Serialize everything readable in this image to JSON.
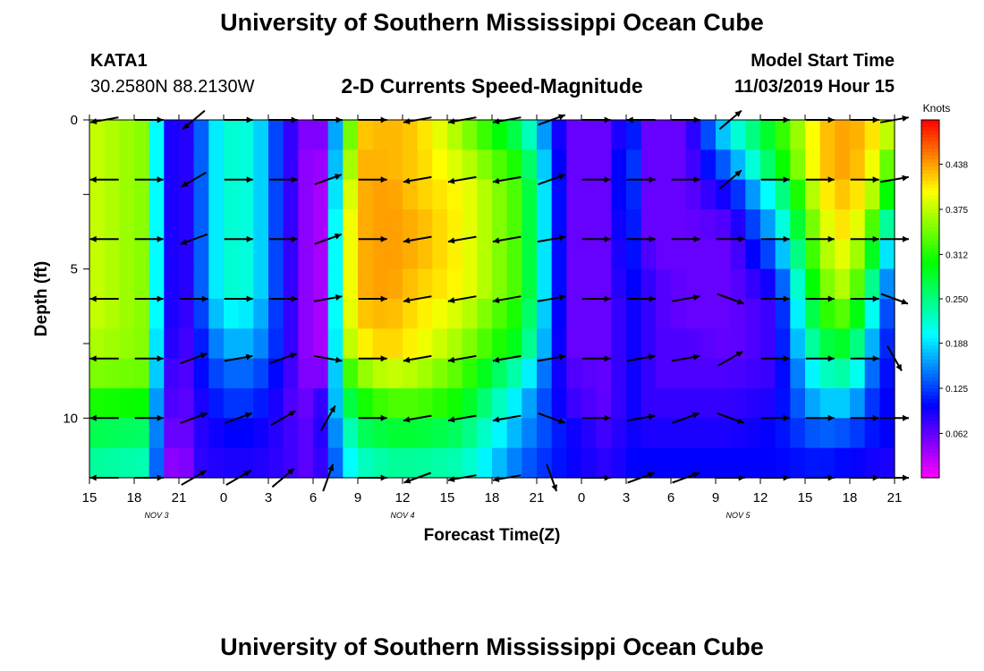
{
  "header": {
    "title": "University of Southern Mississippi Ocean Cube",
    "station_id": "KATA1",
    "coords": "30.2580N 88.2130W",
    "chart_title": "2-D Currents Speed-Magnitude",
    "model_label": "Model Start Time",
    "model_time": "11/03/2019 Hour 15"
  },
  "footer": {
    "title": "University of Southern Mississippi Ocean Cube"
  },
  "chart_data": {
    "type": "heatmap",
    "title": "2-D Currents Speed-Magnitude",
    "xlabel": "Forecast Time(Z)",
    "ylabel": "Depth (ft)",
    "colorbar_label": "Knots",
    "xlim": [
      15,
      69
    ],
    "ylim": [
      0,
      12
    ],
    "x_tick_labels": [
      "15",
      "18",
      "21",
      "0",
      "3",
      "6",
      "9",
      "12",
      "15",
      "18",
      "21",
      "0",
      "3",
      "6",
      "9",
      "12",
      "15",
      "18",
      "21"
    ],
    "date_labels": [
      {
        "text": "NOV 3",
        "hour": 19.5
      },
      {
        "text": "NOV 4",
        "hour": 36
      },
      {
        "text": "NOV 5",
        "hour": 58.5
      }
    ],
    "y_ticks": [
      0,
      5,
      10
    ],
    "colorbar_ticks": [
      "0.438",
      "0.375",
      "0.312",
      "0.250",
      "0.188",
      "0.125",
      "0.062"
    ],
    "colorbar_range": [
      0,
      0.5
    ],
    "depth_rows": [
      0,
      1,
      2,
      3,
      4,
      5,
      6,
      7,
      8,
      9,
      10,
      11
    ],
    "speed_key_hours": [
      15,
      19,
      19.5,
      20,
      21,
      22,
      24,
      26,
      28,
      29,
      30,
      31,
      32,
      33,
      35,
      37,
      40,
      44,
      47,
      50,
      51,
      52,
      52.5,
      53,
      55,
      58,
      61,
      64,
      66,
      68,
      69
    ],
    "speed_profiles": [
      [
        0.38,
        0.38,
        0.38,
        0.38,
        0.38,
        0.38,
        0.38,
        0.37,
        0.35,
        0.31,
        0.27,
        0.24
      ],
      [
        0.35,
        0.35,
        0.35,
        0.35,
        0.35,
        0.35,
        0.35,
        0.35,
        0.34,
        0.3,
        0.26,
        0.23
      ],
      [
        0.2,
        0.2,
        0.2,
        0.2,
        0.2,
        0.2,
        0.2,
        0.19,
        0.18,
        0.16,
        0.15,
        0.14
      ],
      [
        0.12,
        0.12,
        0.12,
        0.12,
        0.12,
        0.12,
        0.12,
        0.11,
        0.1,
        0.09,
        0.08,
        0.07
      ],
      [
        0.06,
        0.06,
        0.06,
        0.06,
        0.06,
        0.06,
        0.06,
        0.06,
        0.05,
        0.05,
        0.04,
        0.02
      ],
      [
        0.11,
        0.11,
        0.11,
        0.11,
        0.11,
        0.11,
        0.1,
        0.09,
        0.09,
        0.08,
        0.08,
        0.08
      ],
      [
        0.22,
        0.22,
        0.22,
        0.22,
        0.22,
        0.22,
        0.2,
        0.17,
        0.14,
        0.12,
        0.1,
        0.09
      ],
      [
        0.21,
        0.21,
        0.21,
        0.21,
        0.21,
        0.21,
        0.19,
        0.17,
        0.14,
        0.12,
        0.1,
        0.09
      ],
      [
        0.1,
        0.1,
        0.1,
        0.1,
        0.1,
        0.1,
        0.1,
        0.1,
        0.09,
        0.08,
        0.08,
        0.08
      ],
      [
        0.06,
        0.06,
        0.06,
        0.06,
        0.06,
        0.06,
        0.06,
        0.06,
        0.06,
        0.06,
        0.07,
        0.07
      ],
      [
        0.04,
        0.03,
        0.03,
        0.03,
        0.03,
        0.03,
        0.03,
        0.03,
        0.04,
        0.06,
        0.06,
        0.06
      ],
      [
        0.06,
        0.05,
        0.04,
        0.04,
        0.04,
        0.04,
        0.04,
        0.04,
        0.06,
        0.1,
        0.11,
        0.1
      ],
      [
        0.27,
        0.3,
        0.34,
        0.36,
        0.36,
        0.36,
        0.36,
        0.35,
        0.3,
        0.25,
        0.2,
        0.18
      ],
      [
        0.42,
        0.43,
        0.43,
        0.43,
        0.43,
        0.43,
        0.42,
        0.4,
        0.35,
        0.3,
        0.26,
        0.22
      ],
      [
        0.43,
        0.43,
        0.44,
        0.44,
        0.44,
        0.44,
        0.43,
        0.42,
        0.38,
        0.33,
        0.28,
        0.24
      ],
      [
        0.42,
        0.42,
        0.42,
        0.43,
        0.43,
        0.42,
        0.41,
        0.4,
        0.37,
        0.33,
        0.28,
        0.24
      ],
      [
        0.36,
        0.38,
        0.4,
        0.4,
        0.4,
        0.4,
        0.38,
        0.36,
        0.33,
        0.3,
        0.26,
        0.23
      ],
      [
        0.26,
        0.3,
        0.32,
        0.32,
        0.32,
        0.32,
        0.3,
        0.28,
        0.22,
        0.18,
        0.16,
        0.14
      ],
      [
        0.06,
        0.06,
        0.06,
        0.06,
        0.06,
        0.06,
        0.06,
        0.06,
        0.07,
        0.08,
        0.1,
        0.1
      ],
      [
        0.06,
        0.06,
        0.06,
        0.06,
        0.06,
        0.06,
        0.06,
        0.06,
        0.06,
        0.06,
        0.07,
        0.08
      ],
      [
        0.12,
        0.14,
        0.14,
        0.13,
        0.12,
        0.11,
        0.1,
        0.1,
        0.1,
        0.1,
        0.1,
        0.1
      ],
      [
        0.1,
        0.1,
        0.09,
        0.09,
        0.09,
        0.09,
        0.09,
        0.09,
        0.09,
        0.09,
        0.09,
        0.1
      ],
      [
        0.06,
        0.06,
        0.06,
        0.06,
        0.07,
        0.08,
        0.08,
        0.08,
        0.08,
        0.08,
        0.09,
        0.1
      ],
      [
        0.06,
        0.06,
        0.06,
        0.06,
        0.06,
        0.07,
        0.07,
        0.07,
        0.07,
        0.08,
        0.09,
        0.1
      ],
      [
        0.06,
        0.06,
        0.06,
        0.06,
        0.06,
        0.06,
        0.06,
        0.07,
        0.07,
        0.08,
        0.09,
        0.1
      ],
      [
        0.2,
        0.15,
        0.1,
        0.07,
        0.06,
        0.06,
        0.06,
        0.06,
        0.07,
        0.08,
        0.09,
        0.1
      ],
      [
        0.3,
        0.28,
        0.22,
        0.18,
        0.14,
        0.1,
        0.08,
        0.08,
        0.08,
        0.09,
        0.1,
        0.1
      ],
      [
        0.42,
        0.42,
        0.4,
        0.38,
        0.36,
        0.34,
        0.31,
        0.27,
        0.22,
        0.18,
        0.14,
        0.11
      ],
      [
        0.44,
        0.44,
        0.43,
        0.42,
        0.4,
        0.38,
        0.34,
        0.29,
        0.24,
        0.18,
        0.13,
        0.1
      ],
      [
        0.4,
        0.38,
        0.35,
        0.3,
        0.25,
        0.2,
        0.16,
        0.13,
        0.11,
        0.1,
        0.1,
        0.09
      ],
      [
        0.35,
        0.3,
        0.25,
        0.18,
        0.13,
        0.11,
        0.1,
        0.1,
        0.1,
        0.1,
        0.1,
        0.09
      ]
    ],
    "vector_hours": [
      16,
      19,
      22,
      25,
      28,
      31,
      34,
      37,
      40,
      43,
      46,
      49,
      52,
      55,
      58,
      61,
      64,
      67,
      69
    ],
    "vector_depths": [
      0,
      2,
      4,
      6,
      8,
      10,
      12
    ],
    "vector_directions_deg": [
      [
        190,
        180,
        180,
        180,
        180,
        180,
        180
      ],
      [
        0,
        0,
        0,
        0,
        0,
        0,
        0
      ],
      [
        220,
        210,
        200,
        0,
        20,
        20,
        30
      ],
      [
        0,
        0,
        0,
        0,
        10,
        20,
        30
      ],
      [
        0,
        0,
        0,
        0,
        20,
        30,
        40
      ],
      [
        0,
        20,
        20,
        10,
        -10,
        60,
        70
      ],
      [
        0,
        0,
        0,
        0,
        0,
        0,
        0
      ],
      [
        190,
        190,
        190,
        190,
        190,
        190,
        200
      ],
      [
        190,
        190,
        190,
        190,
        190,
        190,
        190
      ],
      [
        190,
        190,
        190,
        190,
        190,
        190,
        190
      ],
      [
        20,
        20,
        10,
        10,
        10,
        -20,
        -70
      ],
      [
        0,
        0,
        0,
        0,
        0,
        0,
        0
      ],
      [
        -180,
        0,
        0,
        0,
        10,
        10,
        20
      ],
      [
        0,
        0,
        0,
        10,
        10,
        20,
        20
      ],
      [
        40,
        40,
        0,
        -20,
        30,
        -20,
        0
      ],
      [
        0,
        0,
        0,
        0,
        0,
        0,
        0
      ],
      [
        0,
        0,
        0,
        0,
        0,
        0,
        0
      ],
      [
        0,
        0,
        0,
        0,
        0,
        0,
        0
      ],
      [
        10,
        10,
        0,
        -20,
        -60,
        0,
        0
      ]
    ]
  }
}
